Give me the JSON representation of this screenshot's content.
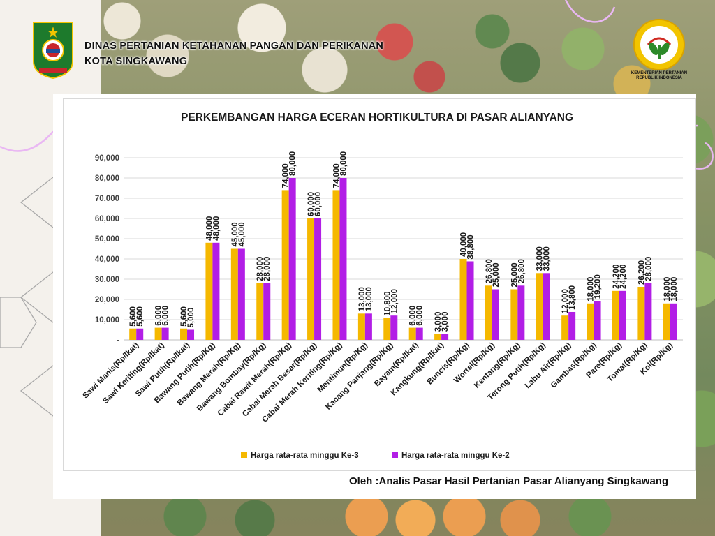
{
  "header": {
    "org_line1": "DINAS PERTANIAN KETAHANAN PANGAN DAN PERIKANAN",
    "org_line2": "KOTA SINGKAWANG",
    "ministry_line1": "KEMENTERIAN PERTANIAN",
    "ministry_line2": "REPUBLIK INDONESIA"
  },
  "footer": {
    "credit": "Oleh :Analis Pasar Hasil Pertanian Pasar Alianyang Singkawang"
  },
  "colors": {
    "series_week3": "#f5b800",
    "series_week2": "#b21ee6"
  },
  "chart_data": {
    "type": "bar",
    "title": "PERKEMBANGAN HARGA ECERAN HORTIKULTURA DI PASAR ALIANYANG",
    "xlabel": "",
    "ylabel": "",
    "ylim": [
      0,
      90000
    ],
    "y_ticks": [
      "-",
      "10,000",
      "20,000",
      "30,000",
      "40,000",
      "50,000",
      "60,000",
      "70,000",
      "80,000",
      "90,000"
    ],
    "grid": true,
    "legend_position": "bottom",
    "categories": [
      "Sawi Manis(Rp/Ikat)",
      "Sawi Keriting(Rp/Ikat)",
      "Sawi Putih(Rp/Ikat)",
      "Bawang Putih(Rp/Kg)",
      "Bawang Merah(Rp/Kg)",
      "Bawang Bombay(Rp/Kg)",
      "Cabai Rawit Merah(Rp/Kg)",
      "Cabai Merah Besar(Rp/Kg)",
      "Cabai Merah Keriting(Rp/Kg)",
      "Mentimun(Rp/Kg)",
      "Kacang Panjang(Rp/Kg)",
      "Bayam(Rp/Ikat)",
      "Kangkung(Rp/Ikat)",
      "Buncis(Rp/Kg)",
      "Wortel(Rp/Kg)",
      "Kentang(Rp/Kg)",
      "Terong Putih(Rp/Kg)",
      "Labu Air(Rp/Kg)",
      "Gambas(Rp/Kg)",
      "Pare(Rp/Kg)",
      "Tomat(Rp/Kg)",
      "Kol(Rp/Kg)"
    ],
    "series": [
      {
        "name": "Harga rata-rata minggu Ke-3",
        "values": [
          5600,
          6000,
          5600,
          48000,
          45000,
          28000,
          74000,
          60000,
          74000,
          13000,
          10800,
          6000,
          3000,
          40000,
          26800,
          25000,
          33000,
          12000,
          18000,
          24200,
          26200,
          18000
        ],
        "labels": [
          "5,600",
          "6,000",
          "5,600",
          "48,000",
          "45,000",
          "28,000",
          "74,000",
          "60,000",
          "74,000",
          "13,000",
          "10,800",
          "6,000",
          "3,000",
          "40,000",
          "26,800",
          "25,000",
          "33,000",
          "12,000",
          "18,000",
          "24,200",
          "26,200",
          "18,000"
        ]
      },
      {
        "name": "Harga rata-rata minggu Ke-2",
        "values": [
          5600,
          6000,
          5000,
          48000,
          45000,
          28000,
          80000,
          60000,
          80000,
          13000,
          12000,
          6000,
          3000,
          38800,
          25000,
          26800,
          33000,
          13800,
          19200,
          24200,
          28000,
          18000
        ],
        "labels": [
          "5,600",
          "6,000",
          "5,000",
          "48,000",
          "45,000",
          "28,000",
          "80,000",
          "60,000",
          "80,000",
          "13,000",
          "12,000",
          "6,000",
          "3,000",
          "38,800",
          "25,000",
          "26,800",
          "33,000",
          "13,800",
          "19,200",
          "24,200",
          "28,000",
          "18,000"
        ]
      }
    ]
  }
}
